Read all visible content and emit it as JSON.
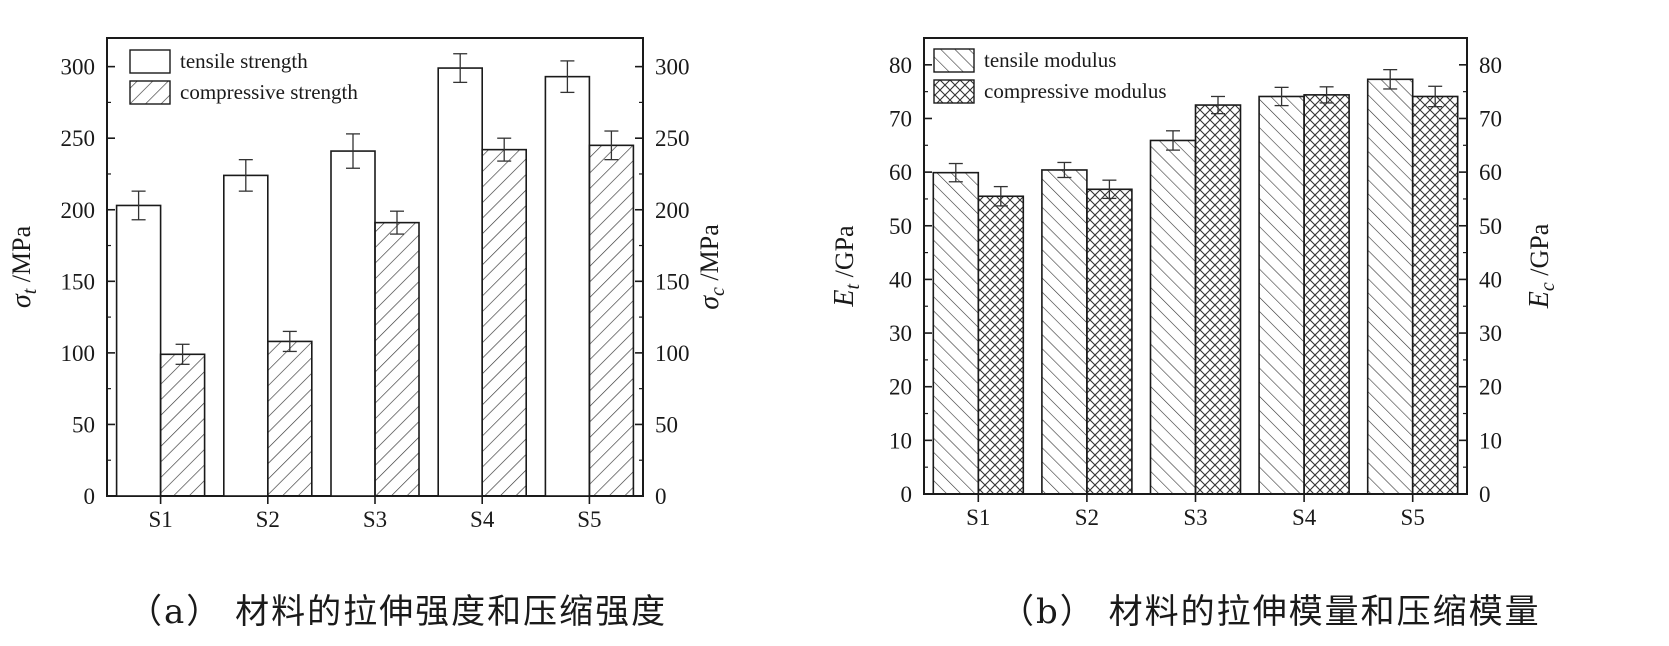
{
  "captions": {
    "a": "（a）  材料的拉伸强度和压缩强度",
    "b": "（b）  材料的拉伸模量和压缩模量"
  },
  "chart_data": [
    {
      "type": "bar",
      "categories": [
        "S1",
        "S2",
        "S3",
        "S4",
        "S5"
      ],
      "ylabel_left": {
        "main": "σ",
        "sub": "t",
        "unit": " /MPa"
      },
      "ylabel_right": {
        "main": "σ",
        "sub": "c",
        "unit": " /MPa"
      },
      "ylim": [
        0,
        320
      ],
      "yticks": [
        0,
        50,
        100,
        150,
        200,
        250,
        300
      ],
      "legend_position": "top-left",
      "series": [
        {
          "name": "tensile strength",
          "values": [
            203,
            224,
            241,
            299,
            293
          ],
          "errors": [
            10,
            11,
            12,
            10,
            11
          ],
          "pattern": "none"
        },
        {
          "name": "compressive strength",
          "values": [
            99,
            108,
            191,
            242,
            245
          ],
          "errors": [
            7,
            7,
            8,
            8,
            10
          ],
          "pattern": "diag-right"
        }
      ]
    },
    {
      "type": "bar",
      "categories": [
        "S1",
        "S2",
        "S3",
        "S4",
        "S5"
      ],
      "ylabel_left": {
        "main": "E",
        "sub": "t",
        "unit": " /GPa"
      },
      "ylabel_right": {
        "main": "E",
        "sub": "c",
        "unit": " /GPa"
      },
      "ylim": [
        0,
        85
      ],
      "yticks": [
        0,
        10,
        20,
        30,
        40,
        50,
        60,
        70,
        80
      ],
      "legend_position": "top-left",
      "series": [
        {
          "name": "tensile modulus",
          "values": [
            59.9,
            60.4,
            65.9,
            74.1,
            77.3
          ],
          "errors": [
            1.7,
            1.4,
            1.8,
            1.7,
            1.8
          ],
          "pattern": "diag-left"
        },
        {
          "name": "compressive modulus",
          "values": [
            55.5,
            56.8,
            72.5,
            74.4,
            74.1
          ],
          "errors": [
            1.8,
            1.7,
            1.6,
            1.5,
            1.9
          ],
          "pattern": "crosshatch"
        }
      ]
    }
  ]
}
